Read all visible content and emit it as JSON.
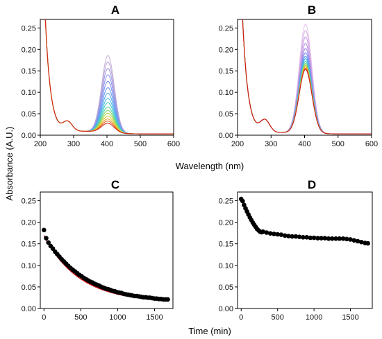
{
  "figure": {
    "shared_ylabel": "Absorbance (A.U.)",
    "top_xlabel": "Wavelength (nm)",
    "bottom_xlabel": "Time (min)"
  },
  "chart_data": [
    {
      "type": "line",
      "panel": "A",
      "xlim": [
        200,
        600
      ],
      "ylim": [
        0,
        0.27
      ],
      "xticks": [
        "200",
        "300",
        "400",
        "500",
        "600"
      ],
      "yticks": [
        "0.00",
        "0.05",
        "0.10",
        "0.15",
        "0.20",
        "0.25"
      ],
      "description_series": "spectral traces recorded over time",
      "series_count": 16,
      "series_peak_400nm": [
        0.18,
        0.165,
        0.15,
        0.135,
        0.12,
        0.105,
        0.092,
        0.08,
        0.07,
        0.06,
        0.052,
        0.045,
        0.038,
        0.032,
        0.027,
        0.022
      ],
      "series_colors": [
        "#c8b4d8",
        "#bba8dc",
        "#a7a0e2",
        "#9198ea",
        "#7f96ee",
        "#6b9cf0",
        "#5aaceb",
        "#4bbde0",
        "#44ccc8",
        "#55d29a",
        "#82d66a",
        "#b4d84a",
        "#dccc3a",
        "#f0a42e",
        "#ec6a24",
        "#d22a1c"
      ]
    },
    {
      "type": "line",
      "panel": "B",
      "xlim": [
        200,
        600
      ],
      "ylim": [
        0,
        0.27
      ],
      "xticks": [
        "200",
        "300",
        "400",
        "500",
        "600"
      ],
      "yticks": [
        "0.00",
        "0.05",
        "0.10",
        "0.15",
        "0.20",
        "0.25"
      ],
      "series_count": 14,
      "series_peak_400nm": [
        0.255,
        0.24,
        0.225,
        0.21,
        0.198,
        0.188,
        0.18,
        0.174,
        0.168,
        0.163,
        0.159,
        0.156,
        0.152,
        0.149
      ],
      "series_colors": [
        "#e8c8ee",
        "#dcb4ea",
        "#cca2e6",
        "#b896e4",
        "#a08ee6",
        "#7a90ee",
        "#5a9cf0",
        "#44bce0",
        "#44ccb4",
        "#6cd27a",
        "#bcd63e",
        "#f0ac2c",
        "#e66424",
        "#c81e1e"
      ]
    },
    {
      "type": "scatter",
      "panel": "C",
      "xlim": [
        -50,
        1750
      ],
      "ylim": [
        0,
        0.27
      ],
      "xticks": [
        "0",
        "500",
        "1000",
        "1500"
      ],
      "yticks": [
        "0.00",
        "0.05",
        "0.10",
        "0.15",
        "0.20",
        "0.25"
      ],
      "marker_color": "#000000",
      "fit_color": "#d01010",
      "fit": {
        "model": "exponential decay",
        "y0": 0.014,
        "A": 0.155,
        "tau": 480
      },
      "x": [
        0,
        30,
        60,
        90,
        120,
        150,
        180,
        210,
        240,
        270,
        300,
        330,
        360,
        390,
        420,
        450,
        480,
        510,
        540,
        570,
        600,
        630,
        660,
        690,
        720,
        750,
        780,
        810,
        840,
        870,
        900,
        930,
        960,
        990,
        1020,
        1050,
        1080,
        1110,
        1140,
        1170,
        1200,
        1230,
        1260,
        1290,
        1320,
        1350,
        1380,
        1410,
        1440,
        1470,
        1500,
        1530,
        1560,
        1590,
        1620,
        1650,
        1680
      ],
      "y": [
        0.182,
        0.163,
        0.153,
        0.145,
        0.139,
        0.132,
        0.126,
        0.12,
        0.114,
        0.109,
        0.104,
        0.099,
        0.094,
        0.09,
        0.086,
        0.082,
        0.078,
        0.075,
        0.071,
        0.068,
        0.065,
        0.062,
        0.06,
        0.057,
        0.055,
        0.053,
        0.05,
        0.048,
        0.046,
        0.045,
        0.043,
        0.041,
        0.04,
        0.038,
        0.037,
        0.036,
        0.034,
        0.033,
        0.032,
        0.031,
        0.03,
        0.029,
        0.029,
        0.028,
        0.027,
        0.026,
        0.026,
        0.025,
        0.025,
        0.024,
        0.023,
        0.023,
        0.022,
        0.022,
        0.021,
        0.021,
        0.021
      ]
    },
    {
      "type": "scatter",
      "panel": "D",
      "xlim": [
        -50,
        1800
      ],
      "ylim": [
        0,
        0.27
      ],
      "xticks": [
        "0",
        "500",
        "1000",
        "1500"
      ],
      "yticks": [
        "0.00",
        "0.05",
        "0.10",
        "0.15",
        "0.20",
        "0.25"
      ],
      "marker_color": "#000000",
      "x": [
        0,
        20,
        40,
        60,
        80,
        100,
        120,
        140,
        160,
        180,
        200,
        220,
        240,
        260,
        280,
        300,
        350,
        400,
        450,
        500,
        550,
        600,
        650,
        700,
        750,
        800,
        850,
        900,
        950,
        1000,
        1050,
        1100,
        1150,
        1200,
        1250,
        1300,
        1350,
        1400,
        1450,
        1500,
        1550,
        1600,
        1650,
        1700,
        1740
      ],
      "y": [
        0.254,
        0.249,
        0.24,
        0.232,
        0.225,
        0.218,
        0.211,
        0.205,
        0.199,
        0.194,
        0.189,
        0.184,
        0.181,
        0.178,
        0.177,
        0.178,
        0.176,
        0.174,
        0.173,
        0.172,
        0.171,
        0.169,
        0.168,
        0.167,
        0.167,
        0.166,
        0.165,
        0.165,
        0.164,
        0.164,
        0.163,
        0.163,
        0.163,
        0.162,
        0.162,
        0.162,
        0.162,
        0.162,
        0.161,
        0.16,
        0.158,
        0.156,
        0.154,
        0.152,
        0.151
      ]
    }
  ]
}
